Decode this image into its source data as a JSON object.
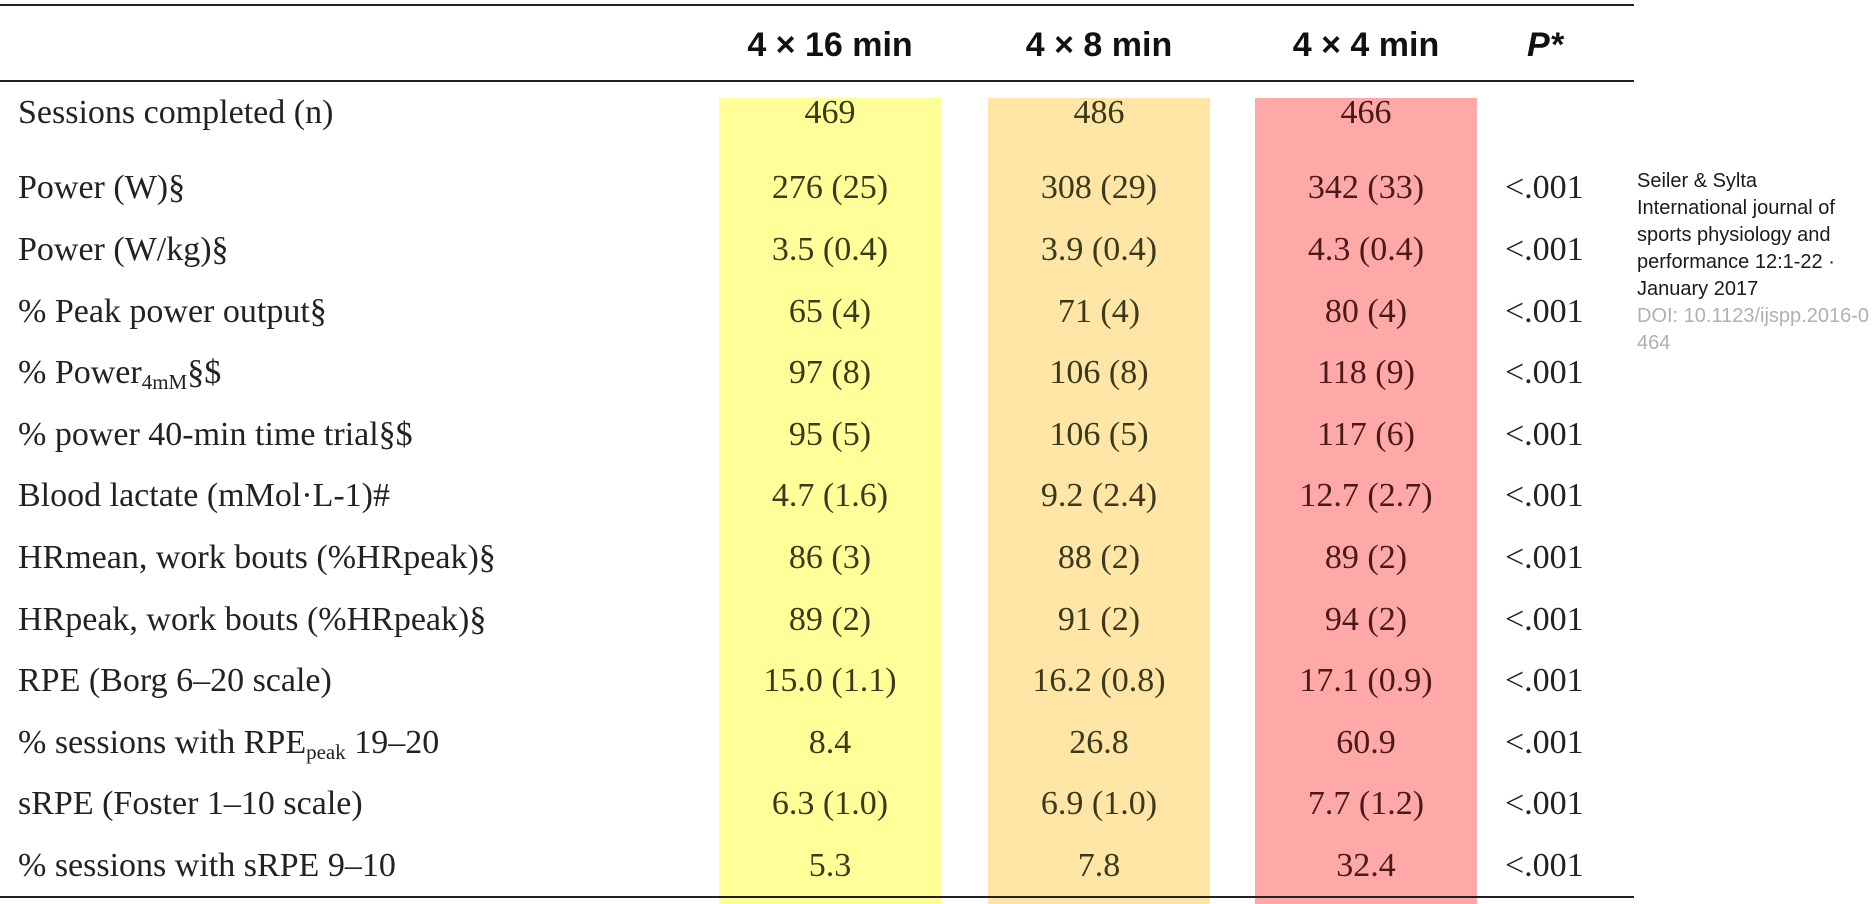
{
  "table": {
    "headers": [
      "",
      "4 × 16 min",
      "4 × 8 min",
      "4 × 4 min",
      "P*"
    ],
    "rows": [
      {
        "label": "Sessions completed (n)",
        "v16": "469",
        "v8": "486",
        "v4": "466",
        "p": ""
      },
      {
        "label": "Power (W)§",
        "v16": "276 (25)",
        "v8": "308 (29)",
        "v4": "342 (33)",
        "p": "<.001"
      },
      {
        "label": "Power (W/kg)§",
        "v16": "3.5 (0.4)",
        "v8": "3.9 (0.4)",
        "v4": "4.3 (0.4)",
        "p": "<.001"
      },
      {
        "label": "% Peak power output§",
        "v16": "65 (4)",
        "v8": "71 (4)",
        "v4": "80 (4)",
        "p": "<.001"
      },
      {
        "label_pre": "% Power",
        "label_sub": "4mM",
        "label_post": "§$",
        "v16": "97 (8)",
        "v8": "106 (8)",
        "v4": "118 (9)",
        "p": "<.001"
      },
      {
        "label": "% power 40-min time trial§$",
        "v16": "95 (5)",
        "v8": "106 (5)",
        "v4": "117 (6)",
        "p": "<.001"
      },
      {
        "label": "Blood lactate (mMol·L-1)#",
        "v16": "4.7 (1.6)",
        "v8": "9.2 (2.4)",
        "v4": "12.7 (2.7)",
        "p": "<.001"
      },
      {
        "label": "HRmean, work bouts (%HRpeak)§",
        "v16": "86 (3)",
        "v8": "88 (2)",
        "v4": "89 (2)",
        "p": "<.001"
      },
      {
        "label": "HRpeak, work bouts (%HRpeak)§",
        "v16": "89 (2)",
        "v8": "91 (2)",
        "v4": "94 (2)",
        "p": "<.001"
      },
      {
        "label": "RPE (Borg 6–20 scale)",
        "v16": "15.0 (1.1)",
        "v8": "16.2 (0.8)",
        "v4": "17.1 (0.9)",
        "p": "<.001"
      },
      {
        "label_pre": "% sessions with RPE",
        "label_sub": "peak",
        "label_post": " 19–20",
        "v16": "8.4",
        "v8": "26.8",
        "v4": "60.9",
        "p": "<.001"
      },
      {
        "label": "sRPE (Foster 1–10 scale)",
        "v16": "6.3 (1.0)",
        "v8": "6.9 (1.0)",
        "v4": "7.7 (1.2)",
        "p": "<.001"
      },
      {
        "label": "% sessions with sRPE 9–10",
        "v16": "5.3",
        "v8": "7.8",
        "v4": "32.4",
        "p": "<.001"
      }
    ]
  },
  "citation": {
    "authors": "Seiler & Sylta",
    "journal": "International journal of sports physiology and performance 12:1-22 · January 2017",
    "doi": "DOI: 10.1123/ijspp.2016-0464"
  },
  "colors": {
    "col_16": "#ffff99",
    "col_8": "#ffe6a6",
    "col_4": "#ffa8a8"
  }
}
